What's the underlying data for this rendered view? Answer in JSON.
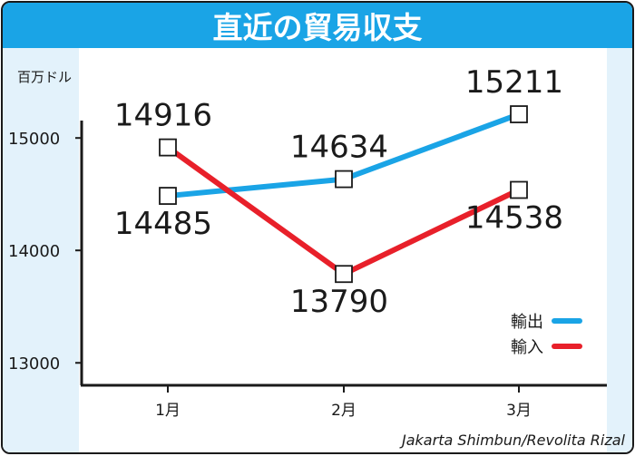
{
  "chart_data": {
    "type": "line",
    "title": "直近の貿易収支",
    "ylabel": "百万ドル",
    "categories": [
      "1月",
      "2月",
      "3月"
    ],
    "yticks": [
      13000,
      14000,
      15000
    ],
    "ylim": [
      12800,
      15800
    ],
    "grid": false,
    "legend_position": "bottom-right",
    "series": [
      {
        "name": "輸出",
        "color": "#1aa4e6",
        "values": [
          14485,
          14634,
          15211
        ],
        "label_positions": [
          "below",
          "above",
          "above"
        ]
      },
      {
        "name": "輸入",
        "color": "#e8202a",
        "values": [
          14916,
          13790,
          14538
        ],
        "label_positions": [
          "above",
          "below",
          "below"
        ]
      }
    ],
    "source": "Jakarta Shimbun/Revolita Rizal"
  },
  "colors": {
    "title_bar": "#1aa4e6",
    "plot_background": "#e3f2fb",
    "axis": "#1a1a1a"
  }
}
